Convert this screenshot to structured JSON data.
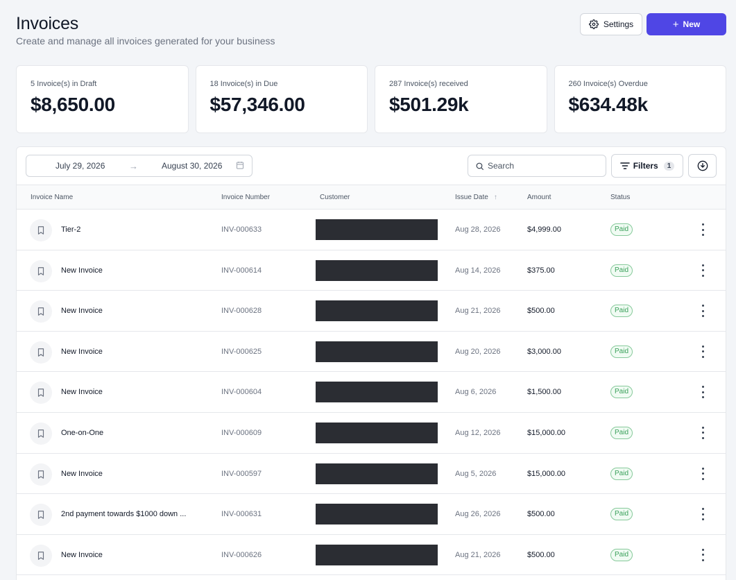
{
  "header": {
    "title": "Invoices",
    "subtitle": "Create and manage all invoices generated for your business",
    "settings_label": "Settings",
    "new_label": "New"
  },
  "stats": [
    {
      "label": "5 Invoice(s) in Draft",
      "value": "$8,650.00"
    },
    {
      "label": "18 Invoice(s) in Due",
      "value": "$57,346.00"
    },
    {
      "label": "287 Invoice(s) received",
      "value": "$501.29k"
    },
    {
      "label": "260 Invoice(s) Overdue",
      "value": "$634.48k"
    }
  ],
  "toolbar": {
    "date_from": "July 29, 2026",
    "date_to": "August 30, 2026",
    "search_placeholder": "Search",
    "filters_label": "Filters",
    "filters_count": "1"
  },
  "table": {
    "columns": {
      "name": "Invoice Name",
      "number": "Invoice Number",
      "customer": "Customer",
      "issue_date": "Issue Date",
      "amount": "Amount",
      "status": "Status"
    },
    "rows": [
      {
        "name": "Tier-2",
        "number": "INV-000633",
        "date": "Aug 28, 2026",
        "amount": "$4,999.00",
        "status": "Paid"
      },
      {
        "name": "New Invoice",
        "number": "INV-000614",
        "date": "Aug 14, 2026",
        "amount": "$375.00",
        "status": "Paid"
      },
      {
        "name": "New Invoice",
        "number": "INV-000628",
        "date": "Aug 21, 2026",
        "amount": "$500.00",
        "status": "Paid"
      },
      {
        "name": "New Invoice",
        "number": "INV-000625",
        "date": "Aug 20, 2026",
        "amount": "$3,000.00",
        "status": "Paid"
      },
      {
        "name": "New Invoice",
        "number": "INV-000604",
        "date": "Aug 6, 2026",
        "amount": "$1,500.00",
        "status": "Paid"
      },
      {
        "name": "One-on-One",
        "number": "INV-000609",
        "date": "Aug 12, 2026",
        "amount": "$15,000.00",
        "status": "Paid"
      },
      {
        "name": "New Invoice",
        "number": "INV-000597",
        "date": "Aug 5, 2026",
        "amount": "$15,000.00",
        "status": "Paid"
      },
      {
        "name": "2nd payment towards $1000 down ...",
        "number": "INV-000631",
        "date": "Aug 26, 2026",
        "amount": "$500.00",
        "status": "Paid"
      },
      {
        "name": "New Invoice",
        "number": "INV-000626",
        "date": "Aug 21, 2026",
        "amount": "$500.00",
        "status": "Paid"
      }
    ]
  },
  "colors": {
    "accent": "#4f46e5",
    "paid_text": "#3aa05a",
    "paid_border": "#86c99a",
    "redacted": "#2b2d33"
  }
}
